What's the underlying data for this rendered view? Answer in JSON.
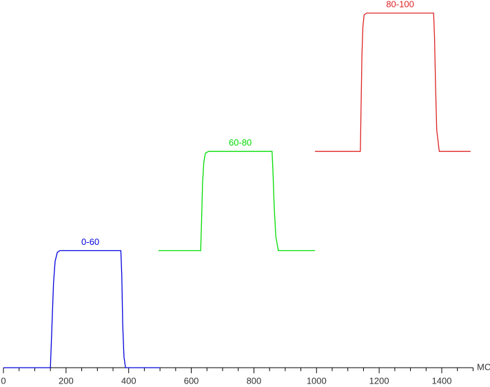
{
  "chart_data": {
    "type": "line",
    "x_unit_label": "МС",
    "xlim": [
      0,
      1500
    ],
    "ylim": [
      0,
      100
    ],
    "xticks": [
      0,
      200,
      400,
      600,
      800,
      1000,
      1200,
      1400
    ],
    "xticks_minor": [
      50,
      100,
      150,
      250,
      300,
      350,
      450,
      500,
      550,
      650,
      700,
      750,
      850,
      900,
      950,
      1050,
      1100,
      1150,
      1250,
      1300,
      1350,
      1450,
      1500
    ],
    "series": [
      {
        "name": "0-60",
        "color": "#0000dd",
        "x": [
          0,
          150,
          155,
          160,
          165,
          172,
          180,
          375,
          378,
          381,
          385,
          390,
          500
        ],
        "values": [
          0,
          0,
          12,
          24,
          30,
          32.5,
          33,
          33,
          26,
          12,
          3,
          0,
          0
        ]
      },
      {
        "name": "60-80",
        "color": "#00dd00",
        "x": [
          495,
          630,
          633,
          636,
          640,
          645,
          655,
          858,
          861,
          865,
          870,
          878,
          995
        ],
        "values": [
          33,
          33,
          42,
          52,
          58,
          60.5,
          61,
          61,
          55,
          45,
          37,
          33,
          33
        ]
      },
      {
        "name": "80-100",
        "color": "#dd2222",
        "x": [
          995,
          1140,
          1142,
          1145,
          1148,
          1152,
          1160,
          1374,
          1377,
          1380,
          1384,
          1392,
          1492
        ],
        "values": [
          61,
          61,
          72,
          88,
          96,
          99.5,
          100,
          100,
          93,
          80,
          67,
          61,
          61
        ]
      }
    ]
  }
}
